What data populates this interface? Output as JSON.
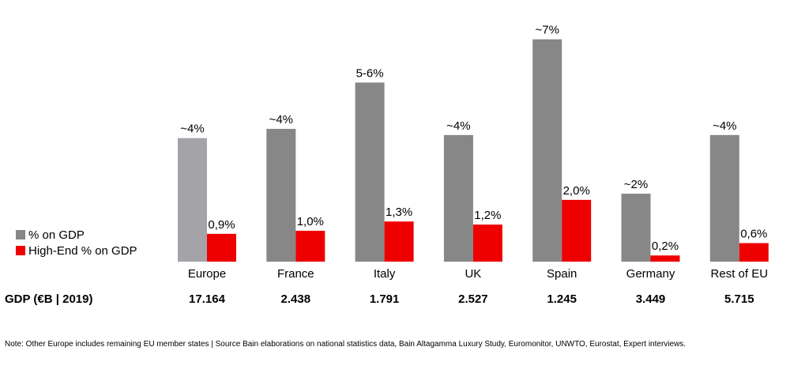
{
  "chart_data": {
    "type": "bar",
    "categories": [
      "Europe",
      "France",
      "Italy",
      "UK",
      "Spain",
      "Germany",
      "Rest of EU"
    ],
    "series": [
      {
        "name": "% on GDP",
        "color": "#878787",
        "values": [
          4,
          4.3,
          5.8,
          4.1,
          7.2,
          2.2,
          4.1
        ],
        "labels": [
          "~4%",
          "~4%",
          "5-6%",
          "~4%",
          "~7%",
          "~2%",
          "~4%"
        ]
      },
      {
        "name": "High-End % on GDP",
        "color": "#ee0000",
        "values": [
          0.9,
          1.0,
          1.3,
          1.2,
          2.0,
          0.2,
          0.6
        ],
        "labels": [
          "0,9%",
          "1,0%",
          "1,3%",
          "1,2%",
          "2,0%",
          "0,2%",
          "0,6%"
        ]
      }
    ],
    "highlight_color": "#a3a3a8",
    "ylim": [
      0,
      7.5
    ],
    "grid": false,
    "legend_position": "left"
  },
  "gdp": {
    "label": "GDP (€B | 2019)",
    "values": [
      "17.164",
      "2.438",
      "1.791",
      "2.527",
      "1.245",
      "3.449",
      "5.715"
    ]
  },
  "note": "Note: Other Europe includes remaining EU member states | Source Bain elaborations on national statistics data, Bain Altagamma Luxury Study, Euromonitor, UNWTO, Eurostat, Expert interviews."
}
